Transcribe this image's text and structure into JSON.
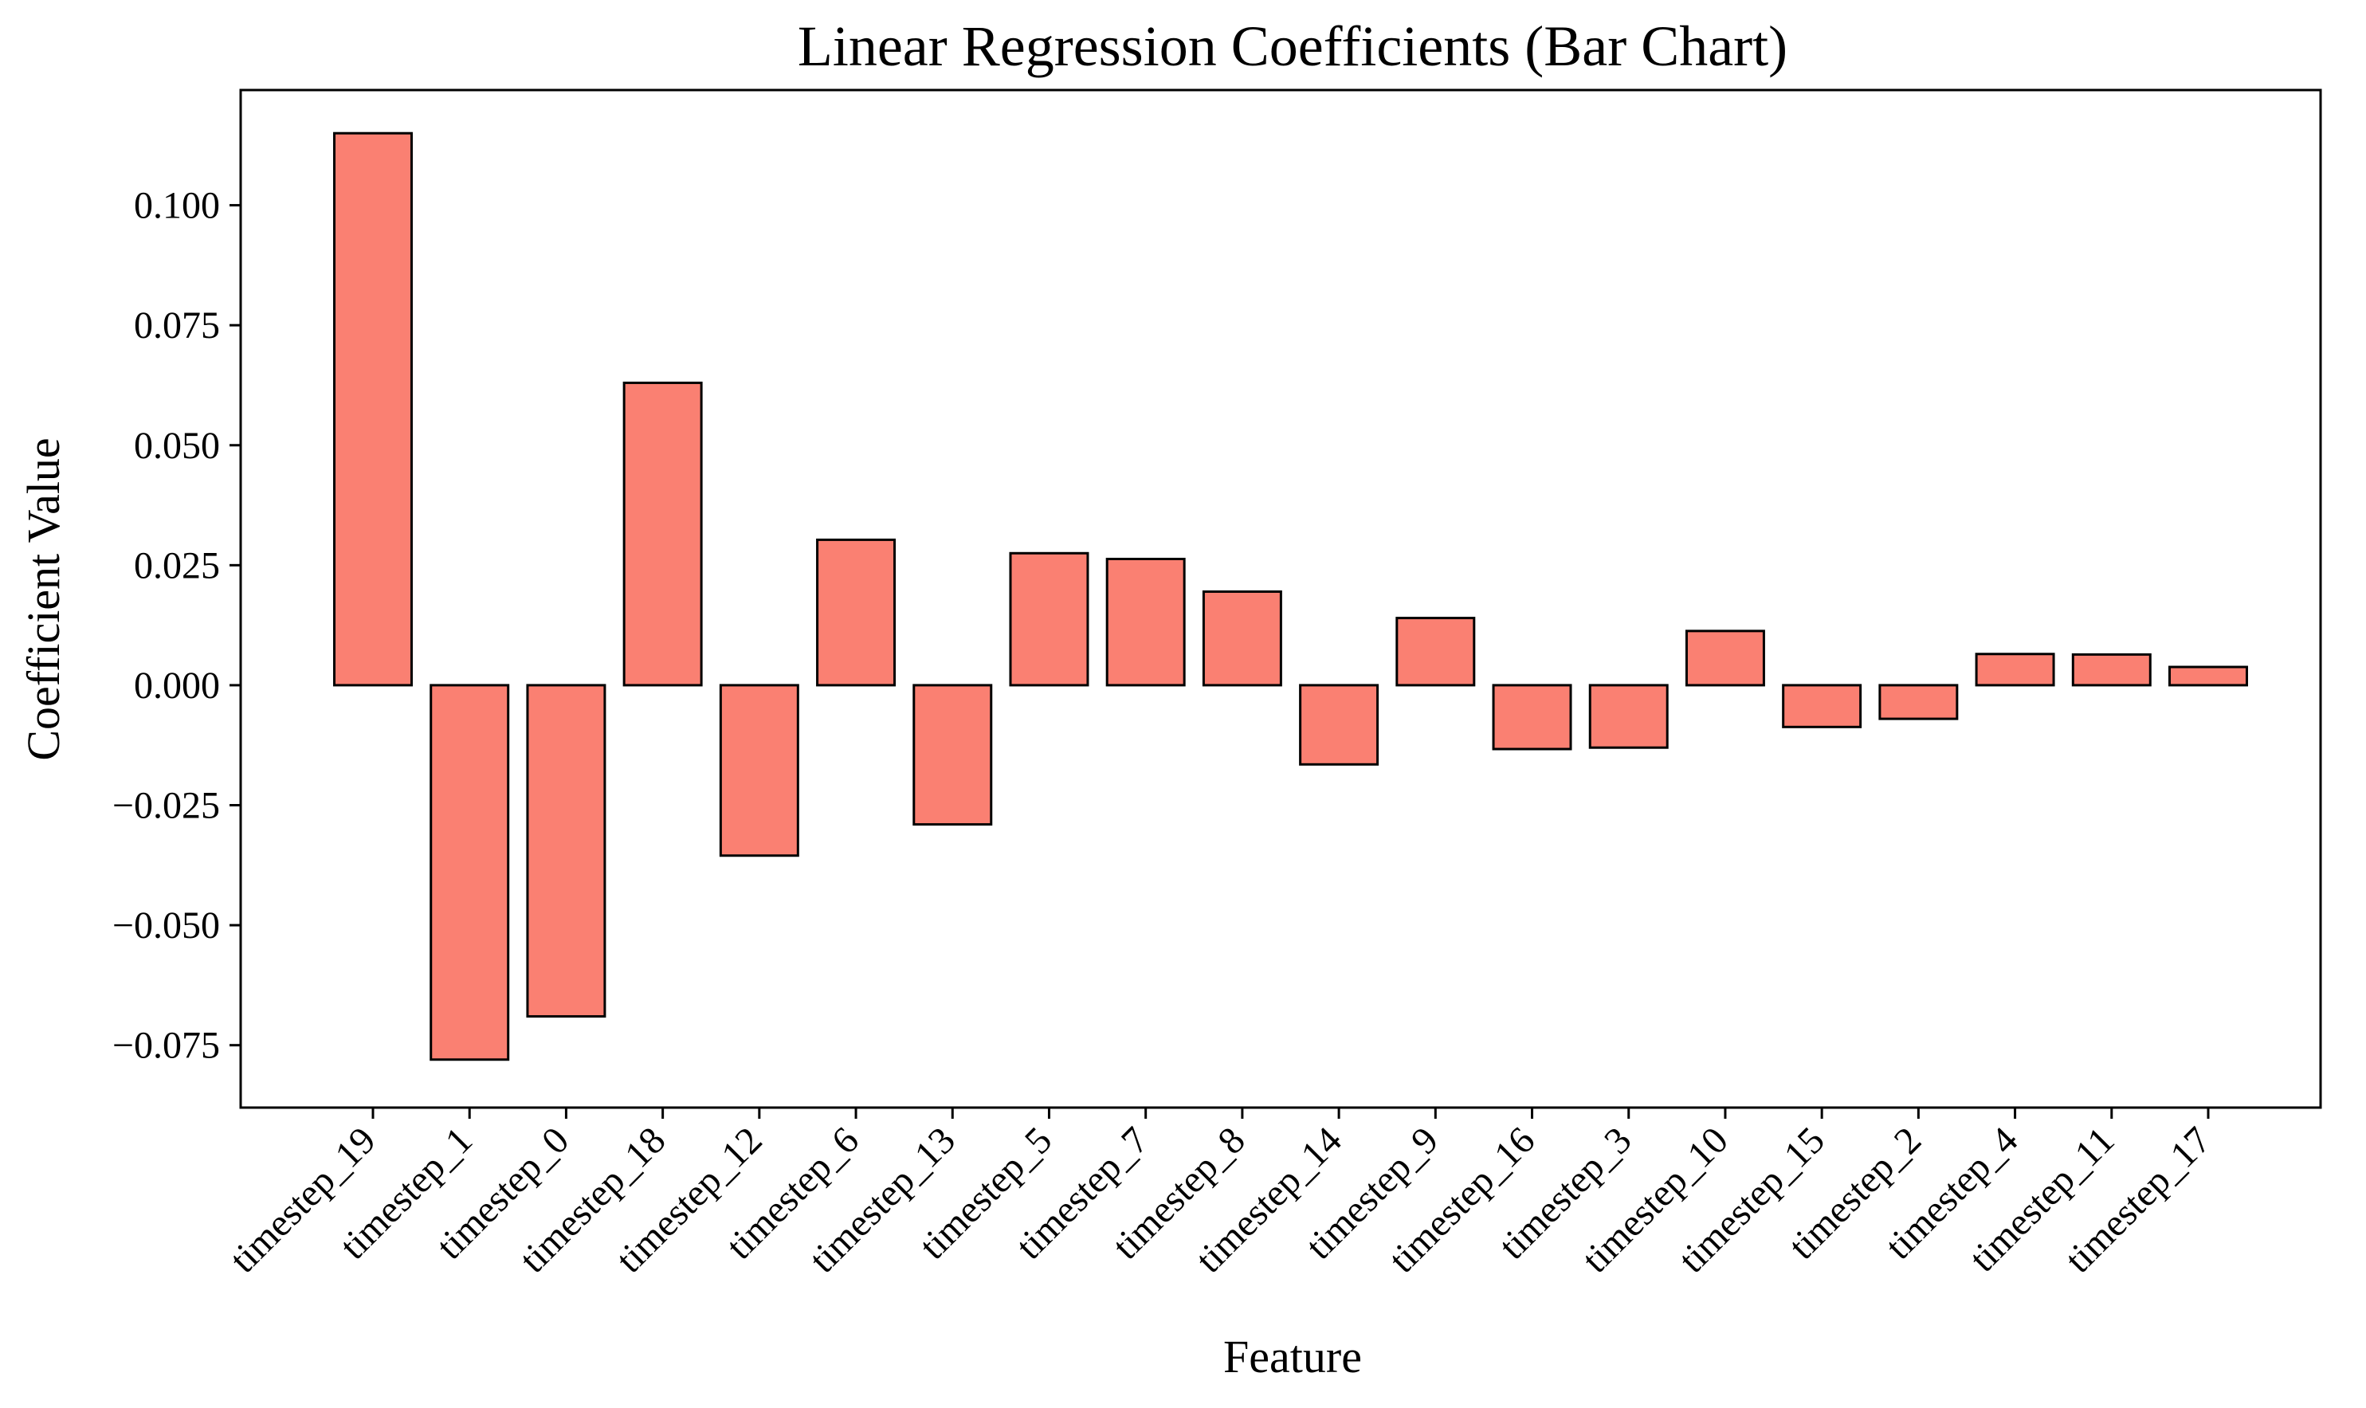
{
  "chart_data": {
    "type": "bar",
    "title": "Linear Regression Coefficients (Bar Chart)",
    "xlabel": "Feature",
    "ylabel": "Coefficient Value",
    "categories": [
      "timestep_19",
      "timestep_1",
      "timestep_0",
      "timestep_18",
      "timestep_12",
      "timestep_6",
      "timestep_13",
      "timestep_5",
      "timestep_7",
      "timestep_8",
      "timestep_14",
      "timestep_9",
      "timestep_16",
      "timestep_3",
      "timestep_10",
      "timestep_15",
      "timestep_2",
      "timestep_4",
      "timestep_11",
      "timestep_17"
    ],
    "values": [
      0.115,
      -0.078,
      -0.069,
      0.063,
      -0.0355,
      0.0303,
      -0.029,
      0.0275,
      0.0263,
      0.0195,
      -0.0165,
      0.014,
      -0.0133,
      -0.013,
      0.0113,
      -0.0087,
      -0.007,
      0.0065,
      0.0064,
      0.0038
    ],
    "ylim": [
      -0.088,
      0.124
    ],
    "yticks": [
      -0.075,
      -0.05,
      -0.025,
      0.0,
      0.025,
      0.05,
      0.075,
      0.1
    ],
    "ytick_labels": [
      "−0.075",
      "−0.050",
      "−0.025",
      "0.000",
      "0.025",
      "0.050",
      "0.075",
      "0.100"
    ],
    "grid": false,
    "bar_color": "#fa8072",
    "edge_color": "#000000"
  }
}
